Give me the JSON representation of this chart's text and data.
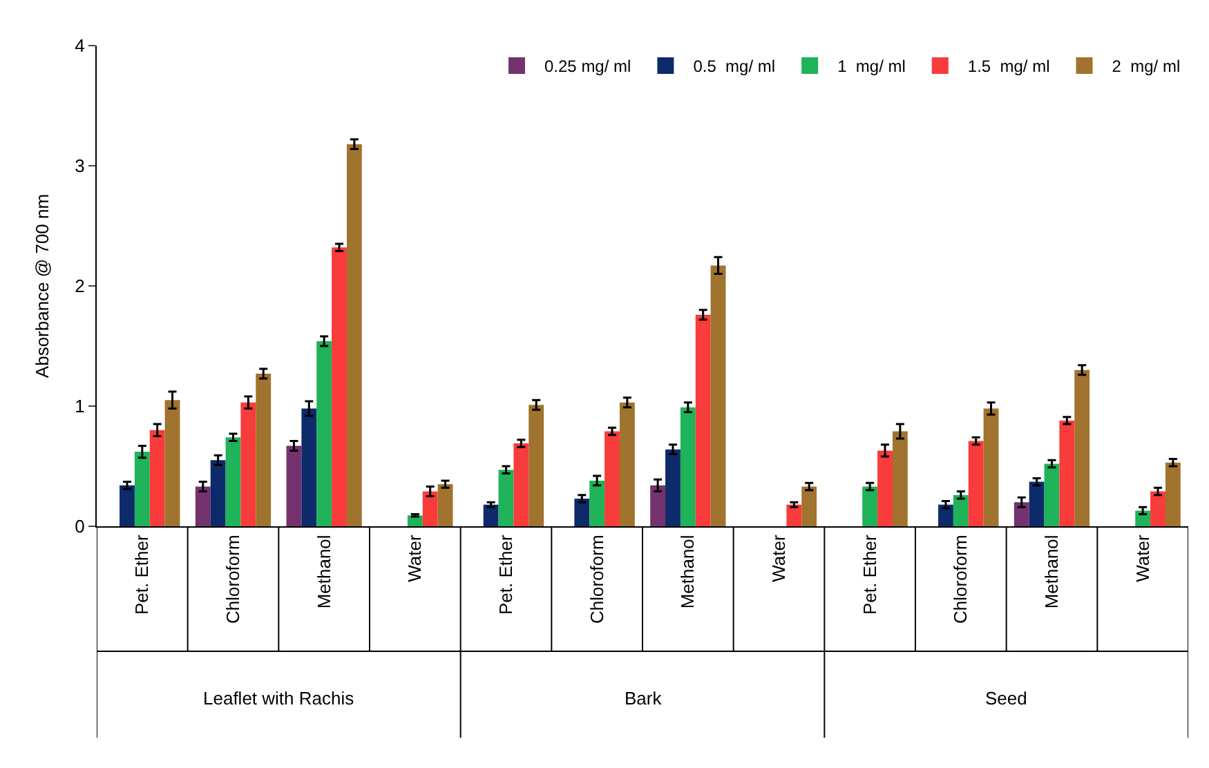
{
  "chart_data": {
    "type": "bar",
    "ylabel": "Absorbance @ 700 nm",
    "categories": [
      "Pet. Ether",
      "Chloroform",
      "Methanol",
      "Water",
      "Pet. Ether",
      "Chloroform",
      "Methanol",
      "Water",
      "Pet. Ether",
      "Chloroform",
      "Methanol",
      "Water"
    ],
    "annotations": [
      "Leaflet with Rachis",
      "Bark",
      "Seed"
    ],
    "series": [
      {
        "name": "0.25 mg/ ml",
        "color": "#74336f",
        "values": [
          null,
          0.33,
          0.67,
          null,
          null,
          null,
          0.34,
          null,
          null,
          null,
          0.2,
          null
        ],
        "errors": [
          null,
          0.04,
          0.04,
          null,
          null,
          null,
          0.05,
          null,
          null,
          null,
          0.04,
          null
        ]
      },
      {
        "name": "0.5  mg/ ml",
        "color": "#0d2a6b",
        "values": [
          0.34,
          0.55,
          0.98,
          null,
          0.18,
          0.23,
          0.64,
          null,
          null,
          0.18,
          0.37,
          null
        ],
        "errors": [
          0.03,
          0.04,
          0.06,
          null,
          0.02,
          0.03,
          0.04,
          null,
          null,
          0.03,
          0.03,
          null
        ]
      },
      {
        "name": "1  mg/ ml",
        "color": "#1fb35a",
        "values": [
          0.62,
          0.74,
          1.54,
          0.09,
          0.47,
          0.38,
          0.99,
          null,
          0.33,
          0.26,
          0.52,
          0.13
        ],
        "errors": [
          0.05,
          0.03,
          0.04,
          0.01,
          0.03,
          0.04,
          0.04,
          null,
          0.03,
          0.03,
          0.03,
          0.03
        ]
      },
      {
        "name": "1.5  mg/ ml",
        "color": "#f83b3b",
        "values": [
          0.8,
          1.03,
          2.32,
          0.29,
          0.69,
          0.79,
          1.76,
          0.18,
          0.63,
          0.71,
          0.88,
          0.29
        ],
        "errors": [
          0.05,
          0.05,
          0.03,
          0.04,
          0.03,
          0.03,
          0.04,
          0.02,
          0.05,
          0.03,
          0.03,
          0.03
        ]
      },
      {
        "name": "2  mg/ ml",
        "color": "#a0732e",
        "values": [
          1.05,
          1.27,
          3.18,
          0.35,
          1.01,
          1.03,
          2.17,
          0.33,
          0.79,
          0.98,
          1.3,
          0.53
        ],
        "errors": [
          0.07,
          0.04,
          0.04,
          0.03,
          0.04,
          0.04,
          0.07,
          0.03,
          0.06,
          0.05,
          0.04,
          0.03
        ]
      }
    ],
    "ylim": [
      0,
      4
    ],
    "yticks": [
      0,
      1,
      2,
      3,
      4
    ],
    "legend": "top right"
  }
}
